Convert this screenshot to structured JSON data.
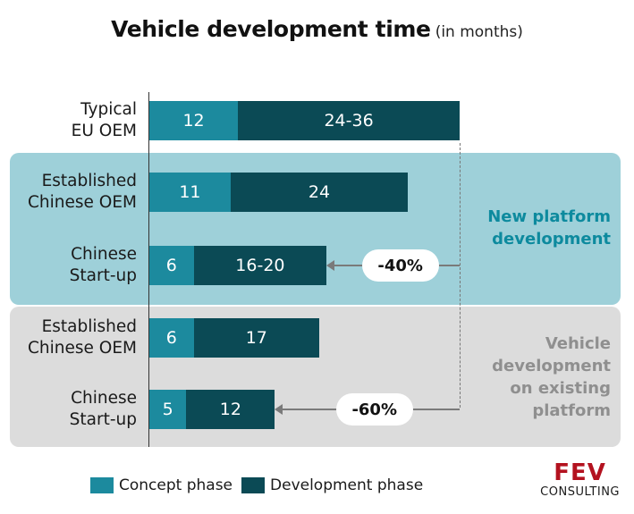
{
  "chart_data": {
    "type": "bar",
    "orientation": "horizontal",
    "stacked": true,
    "title": "Vehicle development time",
    "subtitle": "(in months)",
    "categories": [
      "Typical EU OEM",
      "Established Chinese OEM",
      "Chinese Start-up",
      "Established Chinese OEM",
      "Chinese Start-up"
    ],
    "series": [
      {
        "name": "Concept phase",
        "color": "#1c8a9e",
        "values": [
          12,
          11,
          6,
          6,
          5
        ]
      },
      {
        "name": "Development phase",
        "color": "#0b4a55",
        "values": [
          30,
          24,
          18,
          17,
          12
        ]
      }
    ],
    "data_labels": [
      [
        "12",
        "11",
        "6",
        "6",
        "5"
      ],
      [
        "24-36",
        "24",
        "16-20",
        "17",
        "12"
      ]
    ],
    "groups": [
      {
        "label": "New platform development",
        "rows": [
          1,
          2
        ]
      },
      {
        "label": "Vehicle development on existing platform",
        "rows": [
          3,
          4
        ]
      }
    ],
    "annotations": [
      {
        "text": "-40%",
        "row": 2
      },
      {
        "text": "-60%",
        "row": 4
      }
    ],
    "xlim": [
      0,
      42
    ],
    "grid": false,
    "legend": "bottom-left"
  },
  "category_lines": [
    [
      "Typical",
      "EU OEM"
    ],
    [
      "Established",
      "Chinese OEM"
    ],
    [
      "Chinese",
      "Start-up"
    ],
    [
      "Established",
      "Chinese OEM"
    ],
    [
      "Chinese",
      "Start-up"
    ]
  ],
  "group_label_lines": [
    [
      "New platform",
      "development"
    ],
    [
      "Vehicle",
      "development",
      "on existing",
      "platform"
    ]
  ],
  "logo": {
    "brand": "FEV",
    "sub": "CONSULTING"
  }
}
